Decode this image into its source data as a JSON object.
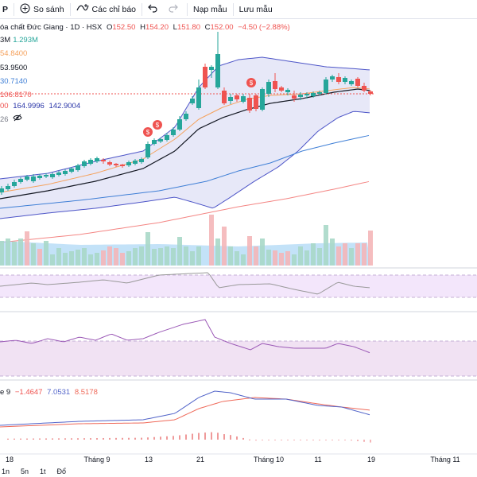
{
  "toolbar": {
    "symbol_partial": "P",
    "compare_label": "So sánh",
    "indicators_label": "Các chỉ báo",
    "load_template_label": "Nạp mẫu",
    "save_template_label": "Lưu mẫu",
    "icons": [
      "plus-circle-icon",
      "indicators-icon",
      "undo-icon",
      "redo-icon"
    ]
  },
  "header": {
    "title": "óa chất Đức Giang · 1D · HSX",
    "o_label": "O",
    "o_value": "152.50",
    "h_label": "H",
    "h_value": "154.20",
    "l_label": "L",
    "l_value": "151.80",
    "c_label": "C",
    "c_value": "152.00",
    "change": "−4.50 (−2.88%)",
    "down_color": "#ef5350"
  },
  "legend": {
    "vol": {
      "prefix": "3M",
      "value": "1.293M"
    },
    "ma1": "54.8400",
    "ma2": "53.9500",
    "ma3": "30.7140",
    "ma4": "106.8170",
    "bb": {
      "a": "00",
      "b": "164.9996",
      "c": "142.9004"
    },
    "last": "26"
  },
  "macd_legend": {
    "label": "e 9",
    "v1": "−1.4647",
    "v2": "7.0531",
    "v3": "8.5178"
  },
  "x_labels": [
    {
      "text": "18",
      "x": 12
    },
    {
      "text": "Tháng 9",
      "x": 122
    },
    {
      "text": "13",
      "x": 187
    },
    {
      "text": "21",
      "x": 252
    },
    {
      "text": "Tháng 10",
      "x": 338
    },
    {
      "text": "11",
      "x": 400
    },
    {
      "text": "19",
      "x": 467
    },
    {
      "text": "Tháng 11",
      "x": 560
    }
  ],
  "bottom_bar": [
    "1n",
    "5n",
    "1t",
    "Đổ"
  ],
  "colors": {
    "up": "#26a69a",
    "down": "#ef5350",
    "bb_fill": "#dfe0f5",
    "bb_line": "#4e56c8",
    "ma_black": "#131722",
    "ma_orange": "#f5a25d",
    "ma_blue": "#3f7fd6",
    "ma_red": "#ef5350",
    "rsi_bg": "#f3e6fb",
    "rsi_line": "#999999",
    "stoch_bg": "#f1e2f3",
    "stoch_line": "#9b59b6",
    "macd_line": "#5264c9",
    "signal_line": "#ef6a5a"
  }
}
